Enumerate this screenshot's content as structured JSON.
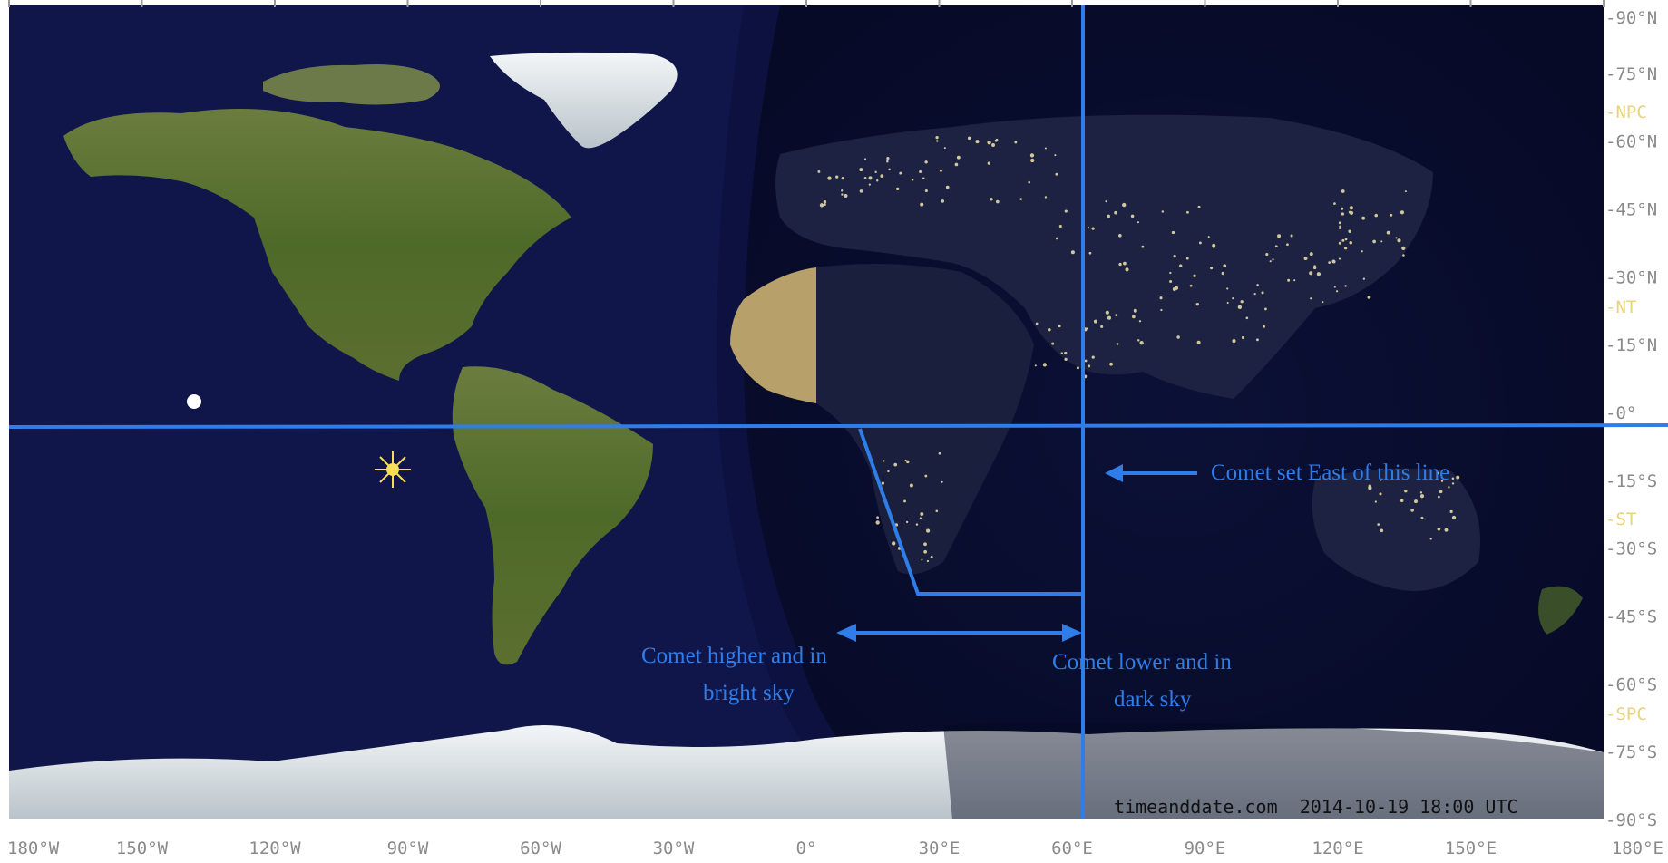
{
  "map": {
    "credit": "timeanddate.com  2014-10-19 18:00 UTC",
    "longitude_labels": [
      "180°W",
      "150°W",
      "120°W",
      "90°W",
      "60°W",
      "30°W",
      "0°",
      "30°E",
      "60°E",
      "90°E",
      "120°E",
      "150°E",
      "180°E"
    ],
    "latitude_labels": [
      "90°N",
      "75°N",
      "NPC",
      "60°N",
      "45°N",
      "30°N",
      "NT",
      "15°N",
      "0°",
      "15°S",
      "ST",
      "30°S",
      "45°S",
      "60°S",
      "SPC",
      "75°S",
      "90°S"
    ],
    "special_labels": [
      "NPC",
      "NT",
      "ST",
      "SPC"
    ],
    "annotations": {
      "set_east": "Comet set East of this line",
      "higher_line1": "Comet higher and in",
      "higher_line2": "bright sky",
      "lower_line1": "Comet lower and in",
      "lower_line2": "dark sky"
    },
    "colors": {
      "ocean": "#10164a",
      "night": "#05081f",
      "land": "#4f6a2c",
      "ice": "#dfe6ee",
      "annotation_blue": "#2f7de8",
      "tick": "#9a9a9a",
      "special_label": "#e8d27a"
    }
  }
}
